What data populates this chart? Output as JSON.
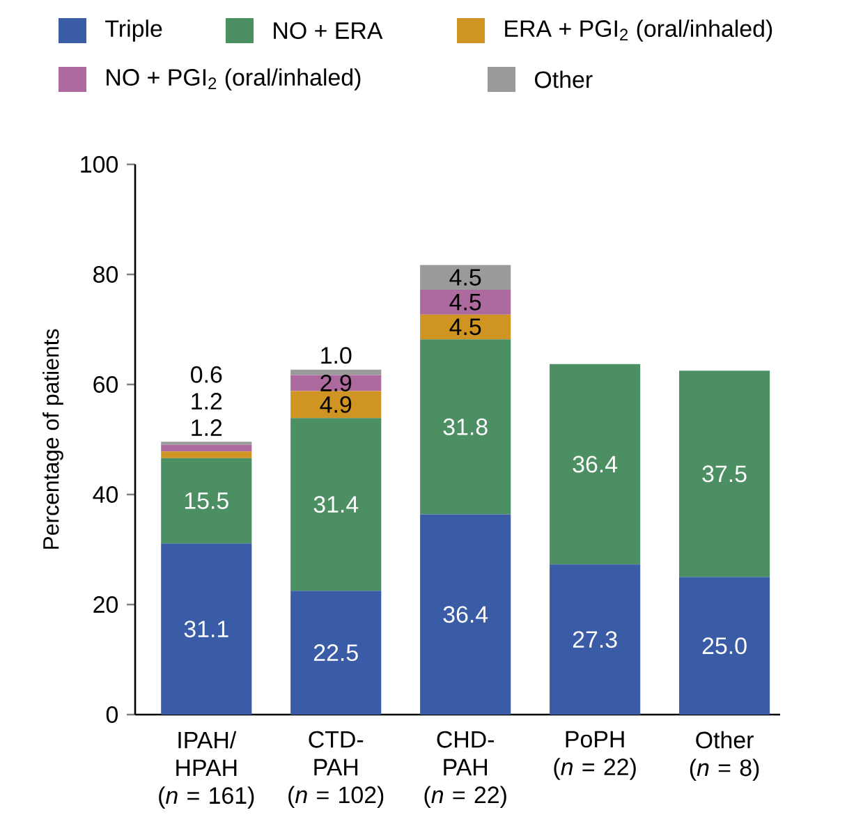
{
  "chart_data": {
    "type": "bar",
    "stacked": true,
    "ylabel": "Percentage of patients",
    "categories": [
      "IPAH/\nHPAH\n(*n* = 161)",
      "CTD-\nPAH\n(*n* = 102)",
      "CHD-\nPAH\n(*n* = 22)",
      "PoPH\n(*n* = 22)",
      "Other\n(*n* = 8)"
    ],
    "series": [
      {
        "name": "Triple",
        "color": "#3a5ba6",
        "values": [
          31.1,
          22.5,
          36.4,
          27.3,
          25.0
        ],
        "value_labels": [
          "31.1",
          "22.5",
          "36.4",
          "27.3",
          "25.0"
        ]
      },
      {
        "name": "NO + ERA",
        "color": "#4b8f63",
        "values": [
          15.5,
          31.4,
          31.8,
          36.4,
          37.5
        ],
        "value_labels": [
          "15.5",
          "31.4",
          "31.8",
          "36.4",
          "37.5"
        ]
      },
      {
        "name": "ERA + PGI$_{2}$ (oral/inhaled)",
        "color": "#cf9421",
        "values": [
          1.2,
          4.9,
          4.5,
          null,
          null
        ],
        "value_labels": [
          "1.2",
          "4.9",
          "4.5",
          null,
          null
        ]
      },
      {
        "name": "NO + PGI$_{2}$ (oral/inhaled)",
        "color": "#ad6a9f",
        "values": [
          1.2,
          2.9,
          4.5,
          null,
          null
        ],
        "value_labels": [
          "1.2",
          "2.9",
          "4.5",
          null,
          null
        ]
      },
      {
        "name": "Other",
        "color": "#9a9a9a",
        "values": [
          0.6,
          1.0,
          4.5,
          null,
          null
        ],
        "value_labels": [
          "0.6",
          "1.0",
          "4.5",
          null,
          null
        ]
      }
    ],
    "ylim": [
      0,
      100
    ],
    "yticks": [
      0,
      20,
      40,
      60,
      80,
      100
    ],
    "legend": "top",
    "grid": false
  }
}
